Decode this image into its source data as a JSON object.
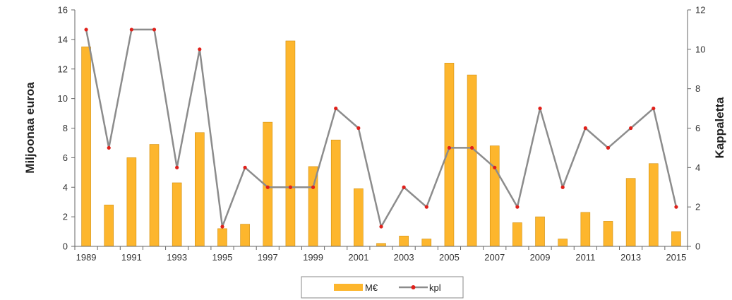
{
  "chart_data": {
    "type": "bar",
    "categories": [
      "1989",
      "1990",
      "1991",
      "1992",
      "1993",
      "1994",
      "1995",
      "1996",
      "1997",
      "1998",
      "1999",
      "2000",
      "2001",
      "2002",
      "2003",
      "2004",
      "2005",
      "2006",
      "2007",
      "2008",
      "2009",
      "2010",
      "2011",
      "2012",
      "2013",
      "2014",
      "2015"
    ],
    "x_tick_labels": [
      "1989",
      "1991",
      "1993",
      "1995",
      "1997",
      "1999",
      "2001",
      "2003",
      "2005",
      "2007",
      "2009",
      "2011",
      "2013",
      "2015"
    ],
    "series": [
      {
        "name": "M€",
        "type": "bar",
        "axis": "left",
        "color": "#FDB62D",
        "values": [
          13.5,
          2.8,
          6.0,
          6.9,
          4.3,
          7.7,
          1.2,
          1.5,
          8.4,
          13.9,
          5.4,
          7.2,
          3.9,
          0.2,
          0.7,
          0.5,
          12.4,
          11.6,
          6.8,
          1.6,
          2.0,
          0.5,
          2.3,
          1.7,
          4.6,
          5.6,
          1.0
        ]
      },
      {
        "name": "kpl",
        "type": "line",
        "axis": "right",
        "color": "#8C8C8C",
        "marker_color": "#E0201A",
        "values": [
          11,
          5,
          11,
          11,
          4,
          10,
          1,
          4,
          3,
          3,
          3,
          7,
          6,
          1,
          3,
          2,
          5,
          5,
          4,
          2,
          7,
          3,
          6,
          5,
          6,
          7,
          2
        ]
      }
    ],
    "ylabel": "Miljoonaa euroa",
    "y2label": "Kappaletta",
    "ylim": [
      0,
      16
    ],
    "y_ticks": [
      "0",
      "2",
      "4",
      "6",
      "8",
      "10",
      "12",
      "14",
      "16"
    ],
    "y2lim": [
      0,
      12
    ],
    "y2_ticks": [
      "0",
      "2",
      "4",
      "6",
      "8",
      "10",
      "12"
    ],
    "grid": false,
    "legend_position": "bottom-center"
  }
}
